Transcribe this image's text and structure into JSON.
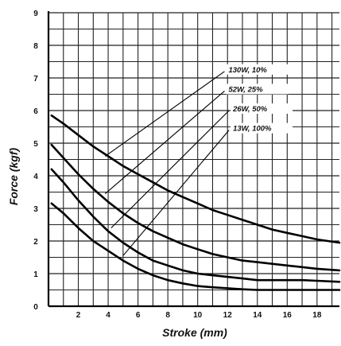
{
  "chart_data": {
    "type": "line",
    "title": "",
    "xlabel": "Stroke (mm)",
    "ylabel": "Force (kgf)",
    "xlim": [
      0,
      19.5
    ],
    "ylim": [
      0,
      9
    ],
    "x_ticks": [
      0,
      2,
      4,
      6,
      8,
      10,
      12,
      14,
      16,
      18
    ],
    "y_ticks": [
      0,
      1,
      2,
      3,
      4,
      5,
      6,
      7,
      8,
      9
    ],
    "grid": true,
    "series": [
      {
        "name": "130W, 10%",
        "x": [
          0.2,
          1,
          2,
          3,
          4,
          5,
          6,
          7,
          8,
          9,
          10,
          11,
          12,
          13,
          14,
          15,
          16,
          17,
          18,
          19.5
        ],
        "y": [
          5.85,
          5.6,
          5.25,
          4.9,
          4.6,
          4.3,
          4.05,
          3.8,
          3.55,
          3.35,
          3.15,
          2.95,
          2.8,
          2.65,
          2.5,
          2.35,
          2.25,
          2.15,
          2.05,
          1.95
        ]
      },
      {
        "name": "52W, 25%",
        "x": [
          0.2,
          1,
          2,
          3,
          4,
          5,
          6,
          7,
          8,
          9,
          10,
          11,
          12,
          13,
          14,
          15,
          16,
          17,
          18,
          19.5
        ],
        "y": [
          4.95,
          4.55,
          4.05,
          3.6,
          3.2,
          2.85,
          2.55,
          2.3,
          2.1,
          1.9,
          1.75,
          1.6,
          1.5,
          1.4,
          1.35,
          1.3,
          1.25,
          1.2,
          1.15,
          1.1
        ]
      },
      {
        "name": "26W, 50%",
        "x": [
          0.2,
          1,
          2,
          3,
          4,
          5,
          6,
          7,
          8,
          9,
          10,
          11,
          12,
          13,
          14,
          15,
          16,
          17,
          18,
          19.5
        ],
        "y": [
          4.2,
          3.8,
          3.25,
          2.75,
          2.3,
          1.95,
          1.65,
          1.4,
          1.25,
          1.1,
          1.0,
          0.95,
          0.9,
          0.85,
          0.8,
          0.8,
          0.8,
          0.8,
          0.78,
          0.75
        ]
      },
      {
        "name": "13W, 100%",
        "x": [
          0.2,
          1,
          2,
          3,
          4,
          5,
          6,
          7,
          8,
          9,
          10,
          11,
          12,
          13,
          14,
          15,
          16,
          17,
          18,
          19.5
        ],
        "y": [
          3.15,
          2.85,
          2.4,
          2.0,
          1.7,
          1.4,
          1.15,
          0.95,
          0.8,
          0.7,
          0.62,
          0.58,
          0.55,
          0.52,
          0.5,
          0.5,
          0.5,
          0.5,
          0.5,
          0.5
        ]
      }
    ],
    "annotations": [
      {
        "text": "130W, 10%",
        "line_from": [
          3.8,
          4.6
        ],
        "line_to": [
          11.8,
          7.2
        ]
      },
      {
        "text": "52W, 25%",
        "line_from": [
          3.8,
          3.45
        ],
        "line_to": [
          11.8,
          6.6
        ]
      },
      {
        "text": "26W, 50%",
        "line_from": [
          4.2,
          2.4
        ],
        "line_to": [
          12.1,
          6.0
        ]
      },
      {
        "text": "13W, 100%",
        "line_from": [
          5.0,
          1.55
        ],
        "line_to": [
          12.1,
          5.4
        ]
      }
    ]
  }
}
